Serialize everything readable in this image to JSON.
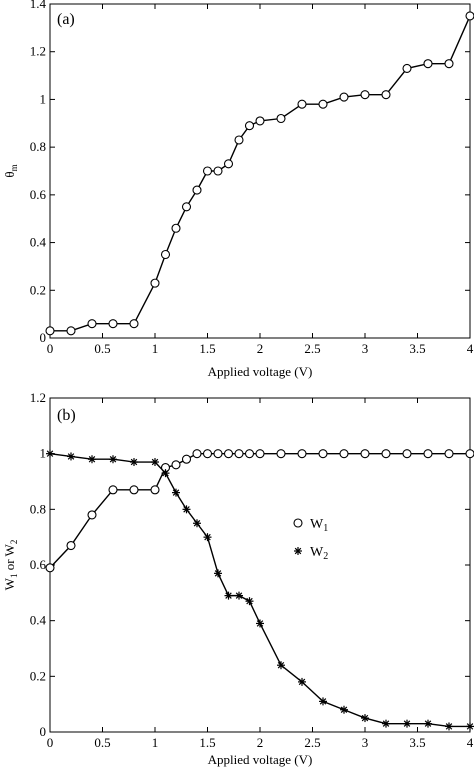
{
  "chart_data": [
    {
      "type": "line",
      "panel_label": "(a)",
      "xlabel": "Applied voltage (V)",
      "ylabel_main": "θ",
      "ylabel_sub": "m",
      "xlim": [
        0,
        4
      ],
      "ylim": [
        0,
        1.4
      ],
      "xticks": [
        "0",
        "0.5",
        "1",
        "1.5",
        "2",
        "2.5",
        "3",
        "3.5",
        "4"
      ],
      "yticks": [
        "0",
        "0.2",
        "0.4",
        "0.6",
        "0.8",
        "1",
        "1.2",
        "1.4"
      ],
      "grid": false,
      "series": [
        {
          "marker": "circle",
          "x": [
            0,
            0.2,
            0.4,
            0.6,
            0.8,
            1.0,
            1.1,
            1.2,
            1.3,
            1.4,
            1.5,
            1.6,
            1.7,
            1.8,
            1.9,
            2.0,
            2.2,
            2.4,
            2.6,
            2.8,
            3.0,
            3.2,
            3.4,
            3.6,
            3.8,
            4.0
          ],
          "y": [
            0.03,
            0.03,
            0.06,
            0.06,
            0.06,
            0.23,
            0.35,
            0.46,
            0.55,
            0.62,
            0.7,
            0.7,
            0.73,
            0.83,
            0.89,
            0.91,
            0.92,
            0.98,
            0.98,
            1.01,
            1.02,
            1.02,
            1.13,
            1.15,
            1.15,
            1.35
          ]
        }
      ]
    },
    {
      "type": "line",
      "panel_label": "(b)",
      "xlabel": "Applied voltage (V)",
      "ylabel_parts": [
        "W",
        "1",
        " or W",
        "2"
      ],
      "xlim": [
        0,
        4
      ],
      "ylim": [
        0,
        1.2
      ],
      "xticks": [
        "0",
        "0.5",
        "1",
        "1.5",
        "2",
        "2.5",
        "3",
        "3.5",
        "4"
      ],
      "yticks": [
        "0",
        "0.2",
        "0.4",
        "0.6",
        "0.8",
        "1",
        "1.2"
      ],
      "grid": false,
      "legend_position": "center-right",
      "series": [
        {
          "name_main": "W",
          "name_sub": "1",
          "marker": "circle",
          "x": [
            0,
            0.2,
            0.4,
            0.6,
            0.8,
            1.0,
            1.1,
            1.2,
            1.3,
            1.4,
            1.5,
            1.6,
            1.7,
            1.8,
            1.9,
            2.0,
            2.2,
            2.4,
            2.6,
            2.8,
            3.0,
            3.2,
            3.4,
            3.6,
            3.8,
            4.0
          ],
          "y": [
            0.59,
            0.67,
            0.78,
            0.87,
            0.87,
            0.87,
            0.95,
            0.96,
            0.98,
            1.0,
            1.0,
            1.0,
            1.0,
            1.0,
            1.0,
            1.0,
            1.0,
            1.0,
            1.0,
            1.0,
            1.0,
            1.0,
            1.0,
            1.0,
            1.0,
            1.0
          ]
        },
        {
          "name_main": "W",
          "name_sub": "2",
          "marker": "star",
          "x": [
            0,
            0.2,
            0.4,
            0.6,
            0.8,
            1.0,
            1.1,
            1.2,
            1.3,
            1.4,
            1.5,
            1.6,
            1.7,
            1.8,
            1.9,
            2.0,
            2.2,
            2.4,
            2.6,
            2.8,
            3.0,
            3.2,
            3.4,
            3.6,
            3.8,
            4.0
          ],
          "y": [
            1.0,
            0.99,
            0.98,
            0.98,
            0.97,
            0.97,
            0.93,
            0.86,
            0.8,
            0.75,
            0.7,
            0.57,
            0.49,
            0.49,
            0.47,
            0.39,
            0.24,
            0.18,
            0.11,
            0.08,
            0.05,
            0.03,
            0.03,
            0.03,
            0.02,
            0.02
          ]
        }
      ]
    }
  ]
}
